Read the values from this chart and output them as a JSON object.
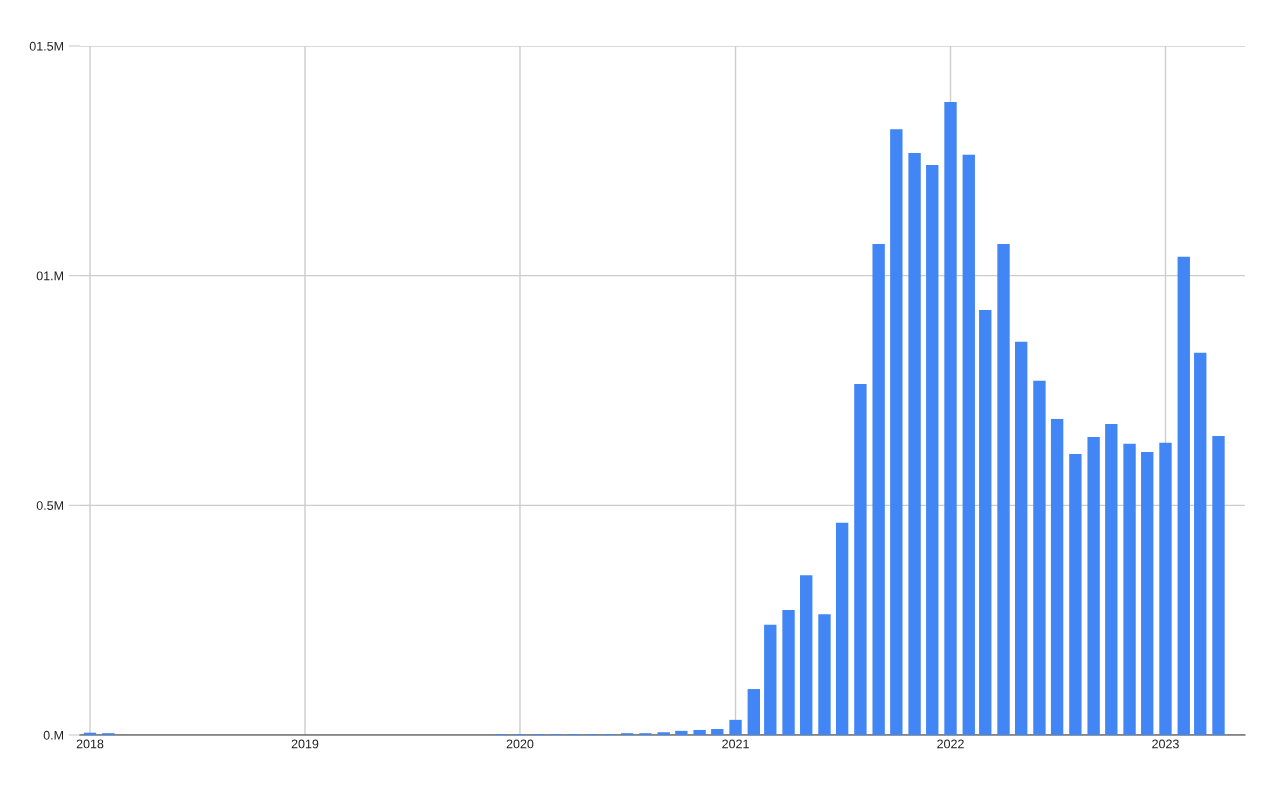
{
  "chart_data": {
    "type": "bar",
    "x": [
      "2018-01",
      "2018-02",
      "2019-12",
      "2020-01",
      "2020-02",
      "2020-03",
      "2020-04",
      "2020-05",
      "2020-06",
      "2020-07",
      "2020-08",
      "2020-09",
      "2020-10",
      "2020-11",
      "2020-12",
      "2021-01",
      "2021-02",
      "2021-03",
      "2021-04",
      "2021-05",
      "2021-06",
      "2021-07",
      "2021-08",
      "2021-09",
      "2021-10",
      "2021-11",
      "2021-12",
      "2022-01",
      "2022-02",
      "2022-03",
      "2022-04",
      "2022-05",
      "2022-06",
      "2022-07",
      "2022-08",
      "2022-09",
      "2022-10",
      "2022-11",
      "2022-12",
      "2023-01",
      "2023-02",
      "2023-03",
      "2023-04"
    ],
    "values": [
      0.005,
      0.004,
      0.002,
      0.002,
      0.002,
      0.002,
      0.002,
      0.002,
      0.002,
      0.004,
      0.004,
      0.006,
      0.009,
      0.011,
      0.013,
      0.033,
      0.1,
      0.24,
      0.272,
      0.348,
      0.263,
      0.462,
      0.764,
      1.069,
      1.319,
      1.267,
      1.241,
      1.378,
      1.263,
      0.925,
      1.069,
      0.856,
      0.771,
      0.688,
      0.612,
      0.649,
      0.677,
      0.634,
      0.616,
      0.636,
      1.041,
      0.832,
      0.651
    ],
    "color": "#4285f4",
    "xlim": [
      "2017-12-15",
      "2023-05-16"
    ],
    "xticks": [
      "2018",
      "2019",
      "2020",
      "2021",
      "2022",
      "2023"
    ],
    "ylim": [
      0,
      1.5
    ],
    "yticks": [
      {
        "value": 0,
        "label": "0.M"
      },
      {
        "value": 0.5,
        "label": "0.5M"
      },
      {
        "value": 1,
        "label": "01.M"
      },
      {
        "value": 1.5,
        "label": "01.5M"
      }
    ],
    "grid": true
  }
}
